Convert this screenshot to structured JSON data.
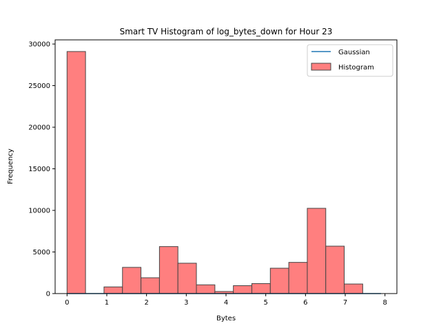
{
  "chart_data": {
    "type": "bar",
    "title": "Smart TV Histogram of log_bytes_down for Hour 23",
    "xlabel": "Bytes",
    "ylabel": "Frequency",
    "xlim": [
      -0.3,
      8.3
    ],
    "ylim": [
      0,
      30500
    ],
    "xticks": [
      0,
      1,
      2,
      3,
      4,
      5,
      6,
      7,
      8
    ],
    "yticks": [
      0,
      5000,
      10000,
      15000,
      20000,
      25000,
      30000
    ],
    "grid": false,
    "legend": {
      "placement": "upper right",
      "entries": [
        "Gaussian",
        "Histogram"
      ]
    },
    "series": [
      {
        "name": "Histogram",
        "kind": "histogram",
        "color": "#ff7f7f",
        "edge_color": "#444444",
        "bin_edges": [
          0.0,
          0.465,
          0.93,
          1.395,
          1.86,
          2.325,
          2.79,
          3.255,
          3.72,
          4.185,
          4.65,
          5.115,
          5.58,
          6.045,
          6.51,
          6.975,
          7.44
        ],
        "counts": [
          29100,
          0,
          800,
          3150,
          1900,
          5650,
          3650,
          1050,
          250,
          950,
          1200,
          3050,
          3750,
          10250,
          5700,
          1150
        ]
      },
      {
        "name": "Gaussian",
        "kind": "line",
        "color": "#1f77b4",
        "x": [
          0,
          1,
          2,
          3,
          4,
          5,
          6,
          7,
          7.9
        ],
        "y": [
          0,
          0,
          0,
          0,
          0,
          0,
          0,
          0,
          0
        ]
      }
    ]
  }
}
